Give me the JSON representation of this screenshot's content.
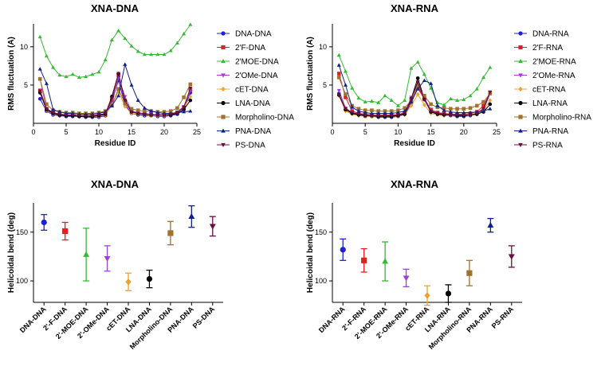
{
  "chart_data": [
    {
      "type": "line",
      "title": "XNA-DNA",
      "xlabel": "Residue ID",
      "ylabel": "RMS fluctuation (A)",
      "xlim": [
        0,
        25
      ],
      "ylim": [
        0,
        13
      ],
      "xticks": [
        0,
        5,
        10,
        15,
        20,
        25
      ],
      "yticks": [
        5,
        10
      ],
      "x": [
        1,
        2,
        3,
        4,
        5,
        6,
        7,
        8,
        9,
        10,
        11,
        12,
        13,
        14,
        15,
        16,
        17,
        18,
        19,
        20,
        21,
        22,
        23,
        24
      ],
      "series": [
        {
          "name": "DNA-DNA",
          "color": "#1f1fd6",
          "marker": "circle",
          "values": [
            3.2,
            1.6,
            1.1,
            1.0,
            0.9,
            0.9,
            0.9,
            0.8,
            0.8,
            0.8,
            1.0,
            3.0,
            5.6,
            2.5,
            1.3,
            1.1,
            1.0,
            1.0,
            0.9,
            0.9,
            1.0,
            1.2,
            1.8,
            4.0
          ]
        },
        {
          "name": "2'F-DNA",
          "color": "#e02020",
          "marker": "square",
          "values": [
            4.3,
            1.9,
            1.4,
            1.2,
            1.1,
            1.1,
            1.0,
            1.0,
            1.0,
            1.0,
            1.1,
            3.2,
            6.3,
            2.8,
            1.5,
            1.3,
            1.2,
            1.1,
            1.1,
            1.1,
            1.2,
            1.4,
            2.0,
            4.4
          ]
        },
        {
          "name": "2'MOE-DNA",
          "color": "#33bb33",
          "marker": "triangle",
          "values": [
            11.3,
            8.8,
            7.3,
            6.3,
            6.1,
            6.4,
            6.0,
            6.1,
            6.4,
            6.7,
            8.3,
            10.9,
            12.1,
            11.1,
            10.1,
            9.4,
            9.0,
            9.0,
            9.0,
            9.0,
            9.5,
            10.5,
            11.7,
            12.9
          ]
        },
        {
          "name": "2'OMe-DNA",
          "color": "#a040d0",
          "marker": "triangle-down",
          "values": [
            5.8,
            1.8,
            1.3,
            1.2,
            1.1,
            1.1,
            1.0,
            1.0,
            1.0,
            1.1,
            1.3,
            2.5,
            6.0,
            3.5,
            1.6,
            1.4,
            1.3,
            1.2,
            1.1,
            1.1,
            1.2,
            1.5,
            2.2,
            4.3
          ]
        },
        {
          "name": "cET-DNA",
          "color": "#f0a030",
          "marker": "diamond",
          "values": [
            4.0,
            1.7,
            1.2,
            1.1,
            1.0,
            1.0,
            0.9,
            0.9,
            0.9,
            0.9,
            1.1,
            2.4,
            4.2,
            2.2,
            1.3,
            1.2,
            1.1,
            1.0,
            1.0,
            1.0,
            1.1,
            1.3,
            2.0,
            3.5
          ]
        },
        {
          "name": "LNA-DNA",
          "color": "#000000",
          "marker": "circle",
          "values": [
            4.0,
            1.8,
            1.3,
            1.1,
            1.0,
            1.0,
            0.9,
            0.9,
            0.9,
            1.0,
            1.2,
            3.5,
            6.5,
            3.0,
            1.5,
            1.3,
            1.2,
            1.1,
            1.1,
            1.1,
            1.1,
            1.3,
            1.8,
            3.0
          ]
        },
        {
          "name": "Morpholino-DNA",
          "color": "#a0722e",
          "marker": "square",
          "values": [
            5.8,
            2.5,
            1.7,
            1.5,
            1.4,
            1.4,
            1.3,
            1.3,
            1.3,
            1.4,
            1.6,
            2.3,
            4.5,
            2.6,
            1.9,
            1.7,
            1.6,
            1.6,
            1.5,
            1.5,
            1.6,
            2.0,
            3.4,
            5.1
          ]
        },
        {
          "name": "PNA-DNA",
          "color": "#10208a",
          "marker": "triangle",
          "values": [
            7.1,
            5.2,
            1.8,
            1.5,
            1.3,
            1.3,
            1.2,
            1.2,
            1.2,
            1.3,
            1.5,
            2.3,
            3.6,
            7.7,
            5.0,
            3.0,
            2.0,
            1.6,
            1.4,
            1.3,
            1.3,
            1.4,
            1.5,
            1.6
          ]
        },
        {
          "name": "PS-DNA",
          "color": "#6a1040",
          "marker": "triangle-down",
          "values": [
            4.2,
            1.9,
            1.4,
            1.2,
            1.1,
            1.1,
            1.0,
            1.0,
            1.0,
            1.1,
            1.3,
            3.3,
            6.5,
            3.0,
            1.5,
            1.3,
            1.2,
            1.1,
            1.1,
            1.1,
            1.2,
            1.4,
            2.1,
            4.6
          ]
        }
      ]
    },
    {
      "type": "line",
      "title": "XNA-RNA",
      "xlabel": "Residue ID",
      "ylabel": "RMS fluctuation (A)",
      "xlim": [
        0,
        25
      ],
      "ylim": [
        0,
        13
      ],
      "xticks": [
        0,
        5,
        10,
        15,
        20,
        25
      ],
      "yticks": [
        5,
        10
      ],
      "x": [
        1,
        2,
        3,
        4,
        5,
        6,
        7,
        8,
        9,
        10,
        11,
        12,
        13,
        14,
        15,
        16,
        17,
        18,
        19,
        20,
        21,
        22,
        23,
        24
      ],
      "series": [
        {
          "name": "DNA-RNA",
          "color": "#1f1fd6",
          "marker": "circle",
          "values": [
            3.9,
            1.8,
            1.3,
            1.1,
            0.9,
            0.9,
            0.8,
            0.8,
            0.8,
            0.9,
            1.2,
            2.6,
            4.8,
            3.1,
            1.5,
            1.2,
            1.1,
            1.0,
            0.9,
            0.9,
            1.0,
            1.2,
            1.8,
            3.9
          ]
        },
        {
          "name": "2'F-RNA",
          "color": "#e02020",
          "marker": "square",
          "values": [
            6.5,
            3.4,
            1.6,
            1.3,
            1.2,
            1.1,
            1.1,
            1.1,
            1.1,
            1.1,
            1.4,
            2.8,
            4.6,
            3.2,
            1.8,
            1.4,
            1.3,
            1.2,
            1.2,
            1.2,
            1.3,
            1.5,
            2.3,
            4.0
          ]
        },
        {
          "name": "2'MOE-RNA",
          "color": "#33bb33",
          "marker": "triangle",
          "values": [
            8.9,
            6.8,
            4.6,
            3.3,
            2.8,
            2.9,
            2.7,
            3.6,
            3.0,
            2.3,
            3.0,
            7.2,
            8.0,
            6.4,
            4.6,
            2.7,
            2.4,
            3.2,
            3.0,
            3.1,
            3.6,
            4.5,
            6.0,
            7.3
          ]
        },
        {
          "name": "2'OMe-RNA",
          "color": "#a040d0",
          "marker": "triangle-down",
          "values": [
            4.3,
            2.0,
            1.4,
            1.2,
            1.1,
            1.0,
            1.0,
            1.0,
            1.0,
            1.0,
            1.3,
            3.4,
            5.0,
            3.3,
            1.7,
            1.3,
            1.2,
            1.1,
            1.1,
            1.1,
            1.1,
            1.3,
            1.9,
            4.0
          ]
        },
        {
          "name": "cET-RNA",
          "color": "#f0a030",
          "marker": "diamond",
          "values": [
            3.6,
            1.6,
            1.2,
            1.0,
            0.9,
            0.9,
            0.9,
            0.9,
            0.9,
            0.9,
            1.1,
            2.3,
            3.8,
            2.4,
            1.3,
            1.1,
            1.0,
            1.0,
            1.0,
            1.0,
            1.0,
            1.2,
            1.7,
            3.0
          ]
        },
        {
          "name": "LNA-RNA",
          "color": "#000000",
          "marker": "circle",
          "values": [
            3.7,
            1.8,
            1.3,
            1.1,
            1.0,
            1.0,
            0.9,
            0.9,
            0.9,
            1.0,
            1.2,
            3.2,
            5.9,
            3.2,
            1.5,
            1.2,
            1.1,
            1.1,
            1.0,
            1.0,
            1.1,
            1.2,
            1.5,
            2.5
          ]
        },
        {
          "name": "Morpholino-RNA",
          "color": "#a0722e",
          "marker": "square",
          "values": [
            6.0,
            3.8,
            2.3,
            1.9,
            1.7,
            1.7,
            1.6,
            1.6,
            1.6,
            1.7,
            2.0,
            3.0,
            4.9,
            3.6,
            2.5,
            2.1,
            2.0,
            1.9,
            1.9,
            1.9,
            2.0,
            2.3,
            2.8,
            3.9
          ]
        },
        {
          "name": "PNA-RNA",
          "color": "#10208a",
          "marker": "triangle",
          "values": [
            7.6,
            5.0,
            2.1,
            1.6,
            1.4,
            1.3,
            1.3,
            1.3,
            1.3,
            1.4,
            1.6,
            2.8,
            4.5,
            5.6,
            5.2,
            2.3,
            1.7,
            1.5,
            1.4,
            1.4,
            1.4,
            1.5,
            1.6,
            1.9
          ]
        },
        {
          "name": "PS-RNA",
          "color": "#6a1040",
          "marker": "triangle-down",
          "values": [
            3.7,
            1.9,
            1.4,
            1.2,
            1.1,
            1.0,
            1.0,
            1.0,
            1.0,
            1.1,
            1.3,
            3.2,
            5.4,
            3.1,
            1.6,
            1.3,
            1.2,
            1.1,
            1.1,
            1.1,
            1.1,
            1.3,
            1.9,
            4.1
          ]
        }
      ]
    },
    {
      "type": "errorbar",
      "title": "XNA-DNA",
      "ylabel": "Helicoidal bend (deg)",
      "ylim": [
        78,
        180
      ],
      "yticks": [
        100,
        150
      ],
      "categories": [
        "DNA-DNA",
        "2'-F-DNA",
        "2'-MOE-DNA",
        "2'-OMe-DNA",
        "cET-DNA",
        "LNA-DNA",
        "Morpholino-DNA",
        "PNA-DNA",
        "PS-DNA"
      ],
      "colors": [
        "#1f1fd6",
        "#e02020",
        "#33bb33",
        "#a040d0",
        "#f0a030",
        "#000000",
        "#a0722e",
        "#10208a",
        "#6a1040"
      ],
      "markers": [
        "circle",
        "square",
        "triangle",
        "triangle-down",
        "diamond",
        "circle",
        "square",
        "triangle",
        "triangle-down"
      ],
      "values": [
        160,
        151,
        127,
        123,
        99,
        102,
        149,
        166,
        156
      ],
      "errors": [
        8,
        9,
        27,
        13,
        9,
        9,
        12,
        11,
        10
      ]
    },
    {
      "type": "errorbar",
      "title": "XNA-RNA",
      "ylabel": "Helicoidal bend (deg)",
      "ylim": [
        78,
        180
      ],
      "yticks": [
        100,
        150
      ],
      "categories": [
        "DNA-RNA",
        "2'-F-RNA",
        "2'-MOE-RNA",
        "2'-OMe-RNA",
        "cET-RNA",
        "LNA-RNA",
        "Morpholino-RNA",
        "PNA-RNA",
        "PS-RNA"
      ],
      "colors": [
        "#1f1fd6",
        "#e02020",
        "#33bb33",
        "#a040d0",
        "#f0a030",
        "#000000",
        "#a0722e",
        "#10208a",
        "#6a1040"
      ],
      "markers": [
        "circle",
        "square",
        "triangle",
        "triangle-down",
        "diamond",
        "circle",
        "square",
        "triangle",
        "triangle-down"
      ],
      "values": [
        132,
        121,
        120,
        103,
        85,
        87,
        108,
        157,
        125
      ],
      "errors": [
        11,
        12,
        20,
        9,
        10,
        9,
        13,
        7,
        11
      ]
    }
  ]
}
